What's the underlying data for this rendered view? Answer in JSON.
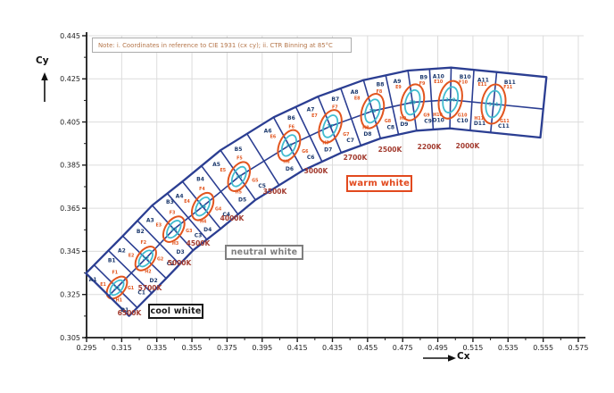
{
  "note": {
    "text": "Note: i. Coordinates in reference to CIE 1931 (cx cy); ii. CTR Binning at 85°C"
  },
  "axes": {
    "x_label": "Cx",
    "y_label": "Cy"
  },
  "regions": {
    "cool_white": {
      "label": "cool white",
      "color": "#1a1a1a"
    },
    "neutral_white": {
      "label": "neutral white",
      "color": "#7f7f7f"
    },
    "warm_white": {
      "label": "warm white",
      "color": "#e2491e"
    }
  },
  "chart_data": {
    "type": "scatter",
    "subtype": "cie1931-cct-binning-diagram",
    "xlabel": "Cx",
    "ylabel": "Cy",
    "xlim": [
      0.295,
      0.575
    ],
    "ylim": [
      0.305,
      0.445
    ],
    "x_ticks": [
      0.295,
      0.315,
      0.335,
      0.355,
      0.375,
      0.395,
      0.415,
      0.435,
      0.455,
      0.475,
      0.495,
      0.515,
      0.535,
      0.555,
      0.575
    ],
    "y_ticks": [
      0.305,
      0.325,
      0.345,
      0.365,
      0.385,
      0.405,
      0.425,
      0.445
    ],
    "minor_tick_step": 0.01,
    "tick_decimals": 3,
    "grid": true,
    "legend_position": "none",
    "style": {
      "band_color": "#2b3e92",
      "ellipse5_color": "#e2551e",
      "ellipse3_color": "#41bccf",
      "quad_label_color": "#1d3a6e",
      "ellipse_label_color": "#e2551e",
      "center_label_color": "#26aebf",
      "cct_label_color": "#a23a2e",
      "grid_color": "#dcdcdc",
      "axis_color": "#1a1a1a"
    },
    "columns": [
      {
        "cct": "6500K",
        "x": 0.3123,
        "y": 0.3282,
        "quad_bins": [
          "A1",
          "B1",
          "C1",
          "D1"
        ],
        "ellipse_bins": [
          "E1",
          "F1",
          "G1",
          "H1"
        ],
        "center_bin": "31"
      },
      {
        "cct": "5700K",
        "x": 0.3287,
        "y": 0.3417,
        "quad_bins": [
          "A2",
          "B2",
          "C2",
          "D2"
        ],
        "ellipse_bins": [
          "E2",
          "F2",
          "G2",
          "H2"
        ],
        "center_bin": "32"
      },
      {
        "cct": "5000K",
        "x": 0.3447,
        "y": 0.3553,
        "quad_bins": [
          "A3",
          "B3",
          "C3",
          "D3"
        ],
        "ellipse_bins": [
          "E3",
          "F3",
          "G3",
          "H3"
        ],
        "center_bin": "33"
      },
      {
        "cct": "4500K",
        "x": 0.3611,
        "y": 0.3658,
        "quad_bins": [
          "A4",
          "B4",
          "C4",
          "D4"
        ],
        "ellipse_bins": [
          "E4",
          "F4",
          "G4",
          "H4"
        ],
        "center_bin": "34"
      },
      {
        "cct": "4000K",
        "x": 0.3818,
        "y": 0.3797,
        "quad_bins": [
          "A5",
          "B5",
          "C5",
          "D5"
        ],
        "ellipse_bins": [
          "E5",
          "F5",
          "G5",
          "H5"
        ],
        "center_bin": "35"
      },
      {
        "cct": "3500K",
        "x": 0.4103,
        "y": 0.3941,
        "quad_bins": [
          "A6",
          "B6",
          "C6",
          "D6"
        ],
        "ellipse_bins": [
          "E6",
          "F6",
          "G6",
          "H6"
        ],
        "center_bin": "36"
      },
      {
        "cct": "3000K",
        "x": 0.4338,
        "y": 0.403,
        "quad_bins": [
          "A7",
          "B7",
          "C7",
          "D7"
        ],
        "ellipse_bins": [
          "E7",
          "F7",
          "G7",
          "H7"
        ],
        "center_bin": "37"
      },
      {
        "cct": "2700K",
        "x": 0.4578,
        "y": 0.4101,
        "quad_bins": [
          "A8",
          "B8",
          "C8",
          "D8"
        ],
        "ellipse_bins": [
          "E8",
          "F8",
          "G8",
          "H8"
        ],
        "center_bin": "38"
      },
      {
        "cct": "2500K",
        "x": 0.4806,
        "y": 0.4141,
        "quad_bins": [
          "A9",
          "B9",
          "C9",
          "D9"
        ],
        "ellipse_bins": [
          "E9",
          "F9",
          "G9",
          "H9"
        ],
        "center_bin": "39"
      },
      {
        "cct": "2200K",
        "x": 0.5022,
        "y": 0.4153,
        "quad_bins": [
          "A10",
          "B10",
          "C10",
          "D10"
        ],
        "ellipse_bins": [
          "E10",
          "F10",
          "G10",
          "H10"
        ],
        "center_bin": "310"
      },
      {
        "cct": "2000K",
        "x": 0.5267,
        "y": 0.4133,
        "quad_bins": [
          "A11",
          "B11",
          "C11",
          "D11"
        ],
        "ellipse_bins": [
          "E11",
          "F11",
          "G11",
          "H11"
        ],
        "center_bin": "311"
      }
    ]
  }
}
